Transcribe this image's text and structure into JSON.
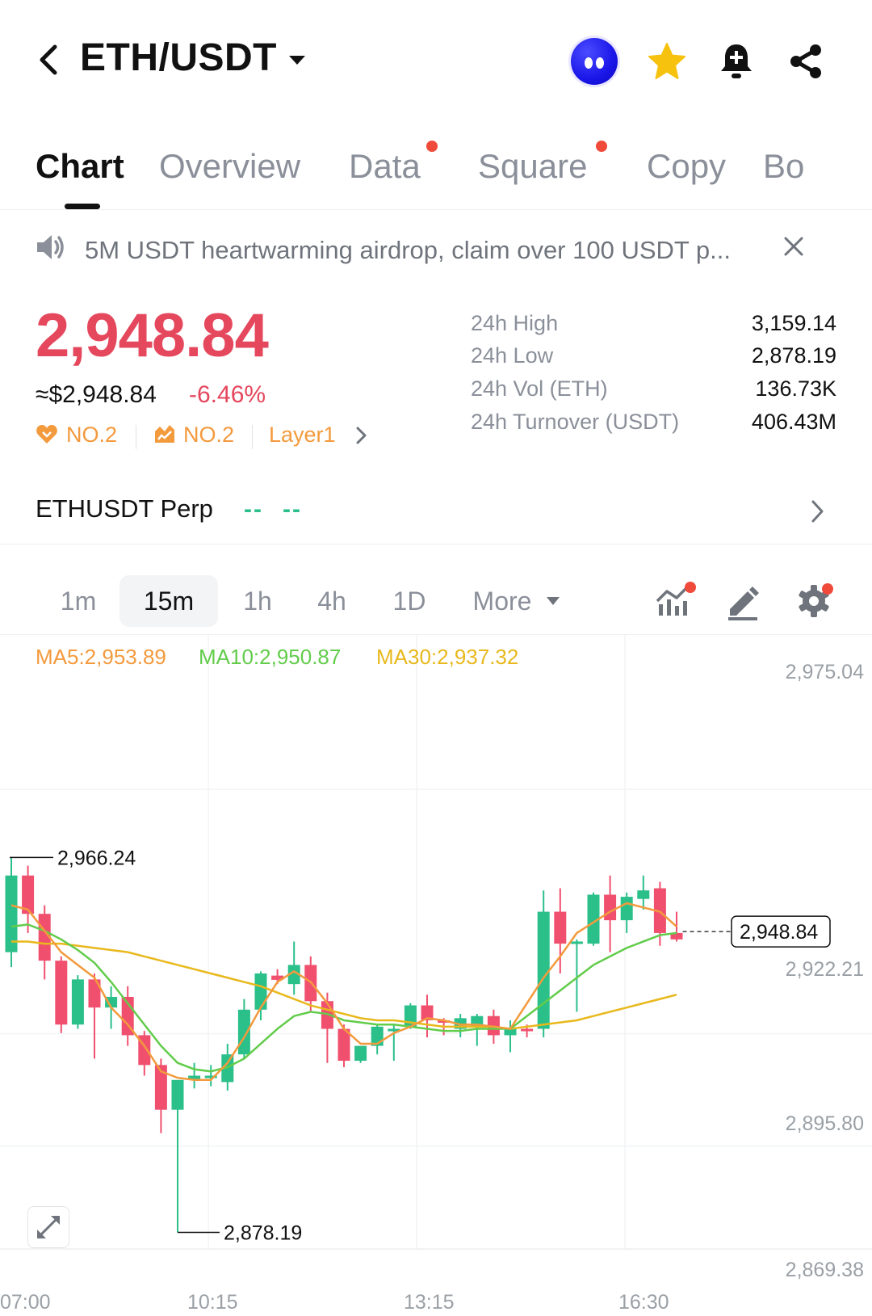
{
  "header": {
    "pair": "ETH/USDT",
    "icons": [
      "back-chevron-icon",
      "dropdown-caret-icon",
      "avatar-icon",
      "star-icon",
      "bell-plus-icon",
      "share-icon"
    ]
  },
  "tabs": [
    {
      "label": "Chart",
      "active": true,
      "dot": false
    },
    {
      "label": "Overview",
      "active": false,
      "dot": false
    },
    {
      "label": "Data",
      "active": false,
      "dot": true
    },
    {
      "label": "Square",
      "active": false,
      "dot": true
    },
    {
      "label": "Copy",
      "active": false,
      "dot": false
    },
    {
      "label": "Bo",
      "active": false,
      "dot": false
    }
  ],
  "announcement": {
    "text": "5M USDT heartwarming airdrop, claim over 100 USDT p..."
  },
  "ticker": {
    "price": "2,948.84",
    "fiat": "≈$2,948.84",
    "change": "-6.46%",
    "badges": [
      {
        "icon": "heart-icon",
        "label": "NO.2"
      },
      {
        "icon": "flame-icon",
        "label": "NO.2"
      }
    ],
    "category": "Layer1"
  },
  "stats": [
    {
      "label": "24h High",
      "value": "3,159.14"
    },
    {
      "label": "24h Low",
      "value": "2,878.19"
    },
    {
      "label": "24h Vol (ETH)",
      "value": "136.73K"
    },
    {
      "label": "24h Turnover (USDT)",
      "value": "406.43M"
    }
  ],
  "perp": {
    "name": "ETHUSDT Perp",
    "value1": "--",
    "value2": "--"
  },
  "intervals": [
    {
      "label": "1m",
      "active": false
    },
    {
      "label": "15m",
      "active": true
    },
    {
      "label": "1h",
      "active": false
    },
    {
      "label": "4h",
      "active": false
    },
    {
      "label": "1D",
      "active": false
    },
    {
      "label": "More",
      "active": false
    }
  ],
  "colors": {
    "up": "#2bbf8a",
    "down": "#f0506e",
    "ma5": "#f39a3d",
    "ma10": "#62cc4b",
    "ma30": "#e8b81c",
    "accent_red": "#e5475d"
  },
  "chart_data": {
    "type": "candlestick",
    "ma": [
      {
        "name": "MA5",
        "label": "MA5:2,953.89",
        "value": 2953.89
      },
      {
        "name": "MA10",
        "label": "MA10:2,950.87",
        "value": 2950.87
      },
      {
        "name": "MA30",
        "label": "MA30:2,937.32",
        "value": 2937.32
      }
    ],
    "y_ticks": [
      "2,975.04",
      "2,922.21",
      "2,895.80",
      "2,869.38"
    ],
    "y_tick_values": [
      2975.04,
      2922.21,
      2895.8,
      2869.38
    ],
    "x_ticks": [
      "07:00",
      "10:15",
      "13:15",
      "16:30"
    ],
    "ylim": [
      2869.38,
      2975.04
    ],
    "high_marker": {
      "label": "2,966.24",
      "value": 2966.24
    },
    "low_marker": {
      "label": "2,878.19",
      "value": 2878.19
    },
    "last_price": {
      "label": "2,948.84",
      "value": 2948.84
    },
    "candles": [
      {
        "o": 2944.0,
        "h": 2966.3,
        "c": 2962.0,
        "l": 2940.5
      },
      {
        "o": 2962.0,
        "h": 2964.3,
        "c": 2953.0,
        "l": 2948.5
      },
      {
        "o": 2953.0,
        "h": 2955.0,
        "c": 2942.0,
        "l": 2937.6
      },
      {
        "o": 2942.0,
        "h": 2943.0,
        "c": 2927.0,
        "l": 2925.0
      },
      {
        "o": 2927.0,
        "h": 2938.6,
        "c": 2937.6,
        "l": 2926.0
      },
      {
        "o": 2937.6,
        "h": 2939.0,
        "c": 2931.0,
        "l": 2919.0
      },
      {
        "o": 2931.0,
        "h": 2936.0,
        "c": 2933.5,
        "l": 2926.0
      },
      {
        "o": 2933.5,
        "h": 2936.0,
        "c": 2924.5,
        "l": 2922.0
      },
      {
        "o": 2924.5,
        "h": 2925.5,
        "c": 2917.5,
        "l": 2915.0
      },
      {
        "o": 2917.5,
        "h": 2919.0,
        "c": 2907.0,
        "l": 2901.5
      },
      {
        "o": 2907.0,
        "h": 2913.5,
        "c": 2914.0,
        "l": 2878.2
      },
      {
        "o": 2914.0,
        "h": 2918.0,
        "c": 2915.0,
        "l": 2912.0
      },
      {
        "o": 2915.0,
        "h": 2917.5,
        "c": 2915.0,
        "l": 2912.5
      },
      {
        "o": 2913.5,
        "h": 2922.5,
        "c": 2920.0,
        "l": 2911.5
      },
      {
        "o": 2920.0,
        "h": 2933.0,
        "c": 2930.5,
        "l": 2919.0
      },
      {
        "o": 2930.5,
        "h": 2939.5,
        "c": 2939.0,
        "l": 2928.0
      },
      {
        "o": 2938.5,
        "h": 2940.0,
        "c": 2937.5,
        "l": 2936.5
      },
      {
        "o": 2936.5,
        "h": 2946.5,
        "c": 2941.0,
        "l": 2934.0
      },
      {
        "o": 2941.0,
        "h": 2943.0,
        "c": 2932.5,
        "l": 2930.0
      },
      {
        "o": 2932.5,
        "h": 2934.5,
        "c": 2926.0,
        "l": 2918.0
      },
      {
        "o": 2926.0,
        "h": 2927.0,
        "c": 2918.5,
        "l": 2917.0
      },
      {
        "o": 2918.5,
        "h": 2921.0,
        "c": 2922.0,
        "l": 2918.0
      },
      {
        "o": 2922.0,
        "h": 2927.0,
        "c": 2926.5,
        "l": 2920.0
      },
      {
        "o": 2926.0,
        "h": 2927.0,
        "c": 2926.0,
        "l": 2918.5
      },
      {
        "o": 2926.5,
        "h": 2932.0,
        "c": 2931.5,
        "l": 2926.0
      },
      {
        "o": 2931.5,
        "h": 2934.0,
        "c": 2928.0,
        "l": 2924.0
      },
      {
        "o": 2928.0,
        "h": 2928.5,
        "c": 2927.5,
        "l": 2924.5
      },
      {
        "o": 2926.0,
        "h": 2929.5,
        "c": 2928.5,
        "l": 2924.0
      },
      {
        "o": 2926.5,
        "h": 2929.5,
        "c": 2929.0,
        "l": 2922.0
      },
      {
        "o": 2929.0,
        "h": 2930.5,
        "c": 2924.5,
        "l": 2922.5
      },
      {
        "o": 2924.5,
        "h": 2928.0,
        "c": 2926.0,
        "l": 2920.5
      },
      {
        "o": 2926.0,
        "h": 2927.0,
        "c": 2925.5,
        "l": 2924.0
      },
      {
        "o": 2926.0,
        "h": 2958.5,
        "c": 2953.5,
        "l": 2924.0
      },
      {
        "o": 2953.5,
        "h": 2959.0,
        "c": 2946.0,
        "l": 2939.0
      },
      {
        "o": 2946.5,
        "h": 2947.0,
        "c": 2946.5,
        "l": 2930.0
      },
      {
        "o": 2946.0,
        "h": 2958.0,
        "c": 2957.5,
        "l": 2945.5
      },
      {
        "o": 2957.5,
        "h": 2962.0,
        "c": 2951.5,
        "l": 2944.0
      },
      {
        "o": 2951.5,
        "h": 2958.0,
        "c": 2957.0,
        "l": 2948.5
      },
      {
        "o": 2956.5,
        "h": 2962.0,
        "c": 2958.5,
        "l": 2954.0
      },
      {
        "o": 2959.0,
        "h": 2960.5,
        "c": 2948.5,
        "l": 2945.5
      },
      {
        "o": 2948.5,
        "h": 2953.5,
        "c": 2947.0,
        "l": 2946.5
      }
    ],
    "ma5_series": [
      2955.0,
      2954.0,
      2949.0,
      2944.0,
      2941.0,
      2938.0,
      2931.0,
      2927.0,
      2922.0,
      2916.0,
      2914.5,
      2914.0,
      2914.0,
      2918.0,
      2924.0,
      2931.0,
      2937.0,
      2939.5,
      2937.0,
      2932.0,
      2926.0,
      2922.5,
      2922.5,
      2925.0,
      2926.5,
      2928.5,
      2928.0,
      2927.0,
      2927.0,
      2926.5,
      2926.0,
      2932.0,
      2938.0,
      2943.0,
      2948.5,
      2951.0,
      2953.5,
      2955.5,
      2954.5,
      2953.5,
      2950.0
    ],
    "ma10_series": [
      2950.0,
      2950.5,
      2949.0,
      2947.0,
      2944.5,
      2941.5,
      2937.0,
      2932.0,
      2927.0,
      2922.0,
      2918.0,
      2916.5,
      2916.0,
      2917.0,
      2919.0,
      2922.5,
      2926.0,
      2929.0,
      2930.0,
      2929.5,
      2928.0,
      2927.5,
      2927.0,
      2927.0,
      2926.5,
      2926.0,
      2925.5,
      2925.5,
      2926.0,
      2926.0,
      2926.0,
      2929.0,
      2932.0,
      2935.0,
      2938.0,
      2941.0,
      2943.0,
      2945.0,
      2946.5,
      2948.0,
      2948.5
    ],
    "ma30_series": [
      2946.5,
      2946.5,
      2946.0,
      2946.0,
      2945.5,
      2945.0,
      2944.5,
      2944.0,
      2943.0,
      2942.0,
      2941.0,
      2940.0,
      2939.0,
      2938.0,
      2937.0,
      2936.0,
      2934.5,
      2933.0,
      2931.5,
      2930.5,
      2929.5,
      2928.5,
      2928.0,
      2928.0,
      2927.5,
      2927.0,
      2926.5,
      2926.5,
      2926.5,
      2926.5,
      2926.0,
      2926.5,
      2927.0,
      2927.5,
      2928.0,
      2929.0,
      2930.0,
      2931.0,
      2932.0,
      2933.0,
      2934.0
    ]
  }
}
